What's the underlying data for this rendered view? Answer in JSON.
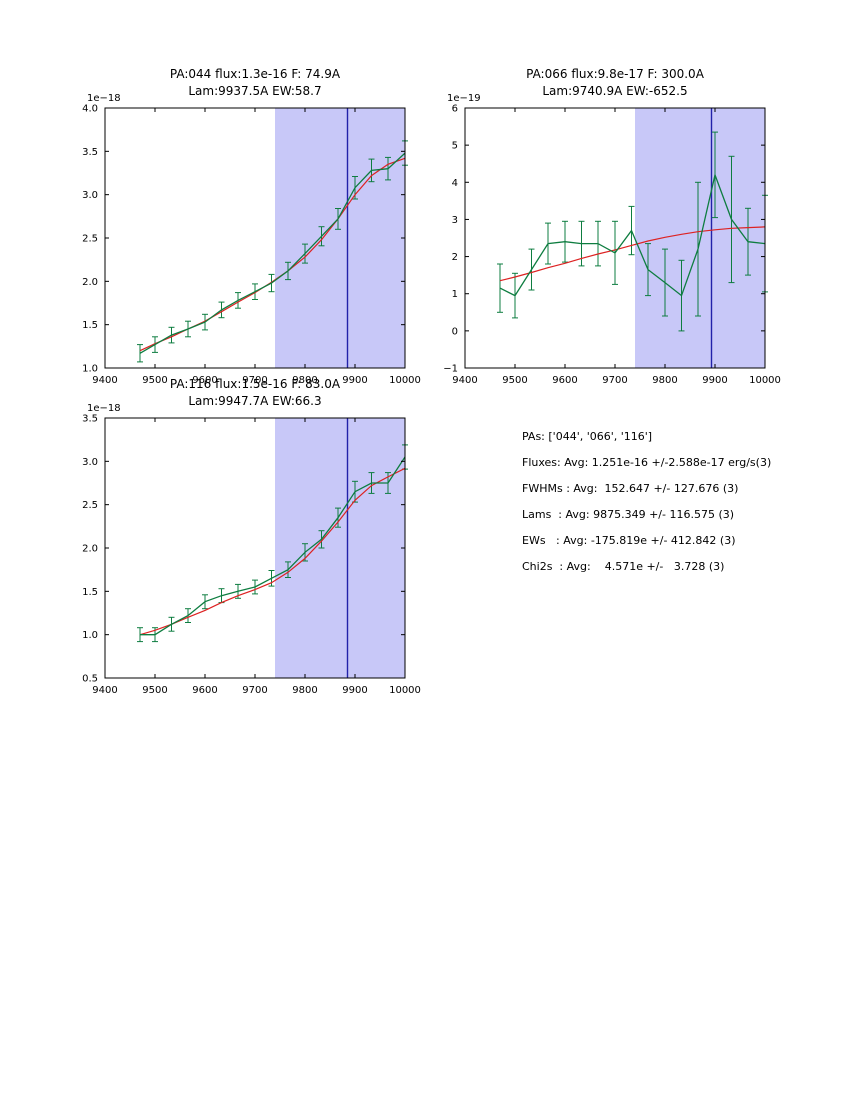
{
  "figure": {
    "background": "#ffffff"
  },
  "colors": {
    "data_line": "#0e7d40",
    "fit_line": "#dd2222",
    "shade": "#c8c8f8",
    "vline": "#2222aa",
    "axis": "#000000"
  },
  "stats": {
    "lines": [
      "PAs: ['044', '066', '116']",
      "Fluxes: Avg: 1.251e-16 +/-2.588e-17 erg/s(3)",
      "FWHMs : Avg:  152.647 +/- 127.676 (3)",
      "Lams  : Avg: 9875.349 +/- 116.575 (3)",
      "EWs   : Avg: -175.819e +/- 412.842 (3)",
      "Chi2s  : Avg:    4.571e +/-   3.728 (3)"
    ]
  },
  "chart_data": [
    {
      "type": "line",
      "title_line1": "PA:044 flux:1.3e-16 F: 74.9A",
      "title_line2": "Lam:9937.5A EW:58.7",
      "offset_label": "1e−18",
      "xlim": [
        9400,
        10000
      ],
      "ylim": [
        1.0,
        4.0
      ],
      "xticks": [
        9400,
        9500,
        9600,
        9700,
        9800,
        9900,
        10000
      ],
      "xtick_labels": [
        "9400",
        "9500",
        "9600",
        "9700",
        "9800",
        "9900",
        "10000"
      ],
      "yticks": [
        1.0,
        1.5,
        2.0,
        2.5,
        3.0,
        3.5,
        4.0
      ],
      "ytick_labels": [
        "1.0",
        "1.5",
        "2.0",
        "2.5",
        "3.0",
        "3.5",
        "4.0"
      ],
      "shade_span": [
        9740,
        10000
      ],
      "vline_x": 9885,
      "x": [
        9470,
        9500,
        9533,
        9566,
        9600,
        9633,
        9666,
        9700,
        9733,
        9766,
        9800,
        9833,
        9866,
        9900,
        9933,
        9966,
        10000
      ],
      "series": [
        {
          "name": "data",
          "color": "#0e7d40",
          "values": [
            1.17,
            1.27,
            1.38,
            1.45,
            1.53,
            1.67,
            1.78,
            1.88,
            1.98,
            2.12,
            2.32,
            2.52,
            2.72,
            3.08,
            3.28,
            3.3,
            3.48
          ],
          "errors": [
            0.1,
            0.09,
            0.09,
            0.09,
            0.09,
            0.09,
            0.09,
            0.09,
            0.1,
            0.1,
            0.11,
            0.11,
            0.12,
            0.13,
            0.13,
            0.13,
            0.14
          ]
        },
        {
          "name": "fit",
          "color": "#dd2222",
          "values": [
            1.2,
            1.28,
            1.36,
            1.45,
            1.54,
            1.65,
            1.76,
            1.87,
            1.99,
            2.12,
            2.28,
            2.48,
            2.72,
            3.0,
            3.22,
            3.35,
            3.42
          ]
        }
      ]
    },
    {
      "type": "line",
      "title_line1": "PA:066 flux:9.8e-17 F: 300.0A",
      "title_line2": "Lam:9740.9A EW:-652.5",
      "offset_label": "1e−19",
      "xlim": [
        9400,
        10000
      ],
      "ylim": [
        -1,
        6
      ],
      "xticks": [
        9400,
        9500,
        9600,
        9700,
        9800,
        9900,
        10000
      ],
      "xtick_labels": [
        "9400",
        "9500",
        "9600",
        "9700",
        "9800",
        "9900",
        "10000"
      ],
      "yticks": [
        -1,
        0,
        1,
        2,
        3,
        4,
        5,
        6
      ],
      "ytick_labels": [
        "−1",
        "0",
        "1",
        "2",
        "3",
        "4",
        "5",
        "6"
      ],
      "shade_span": [
        9740,
        10000
      ],
      "vline_x": 9893,
      "x": [
        9470,
        9500,
        9533,
        9566,
        9600,
        9633,
        9666,
        9700,
        9733,
        9766,
        9800,
        9833,
        9866,
        9900,
        9933,
        9966,
        10000
      ],
      "series": [
        {
          "name": "data",
          "color": "#0e7d40",
          "values": [
            1.15,
            0.95,
            1.65,
            2.35,
            2.4,
            2.35,
            2.35,
            2.1,
            2.7,
            1.65,
            1.3,
            0.95,
            2.2,
            4.2,
            3.0,
            2.4,
            2.35
          ],
          "errors": [
            0.65,
            0.6,
            0.55,
            0.55,
            0.55,
            0.6,
            0.6,
            0.85,
            0.65,
            0.7,
            0.9,
            0.95,
            1.8,
            1.15,
            1.7,
            0.9,
            1.3
          ]
        },
        {
          "name": "fit",
          "color": "#dd2222",
          "values": [
            1.35,
            1.45,
            1.57,
            1.7,
            1.82,
            1.95,
            2.07,
            2.18,
            2.3,
            2.42,
            2.52,
            2.6,
            2.67,
            2.72,
            2.76,
            2.78,
            2.8
          ]
        }
      ]
    },
    {
      "type": "line",
      "title_line1": "PA:116 flux:1.5e-16 F: 83.0A",
      "title_line2": "Lam:9947.7A EW:66.3",
      "offset_label": "1e−18",
      "xlim": [
        9400,
        10000
      ],
      "ylim": [
        0.5,
        3.5
      ],
      "xticks": [
        9400,
        9500,
        9600,
        9700,
        9800,
        9900,
        10000
      ],
      "xtick_labels": [
        "9400",
        "9500",
        "9600",
        "9700",
        "9800",
        "9900",
        "10000"
      ],
      "yticks": [
        0.5,
        1.0,
        1.5,
        2.0,
        2.5,
        3.0,
        3.5
      ],
      "ytick_labels": [
        "0.5",
        "1.0",
        "1.5",
        "2.0",
        "2.5",
        "3.0",
        "3.5"
      ],
      "shade_span": [
        9740,
        10000
      ],
      "vline_x": 9885,
      "x": [
        9470,
        9500,
        9533,
        9566,
        9600,
        9633,
        9666,
        9700,
        9733,
        9766,
        9800,
        9833,
        9866,
        9900,
        9933,
        9966,
        10000
      ],
      "series": [
        {
          "name": "data",
          "color": "#0e7d40",
          "values": [
            1.0,
            1.0,
            1.12,
            1.22,
            1.38,
            1.45,
            1.5,
            1.55,
            1.65,
            1.75,
            1.95,
            2.1,
            2.35,
            2.65,
            2.75,
            2.75,
            3.05
          ],
          "errors": [
            0.08,
            0.08,
            0.08,
            0.08,
            0.08,
            0.08,
            0.08,
            0.08,
            0.09,
            0.09,
            0.1,
            0.1,
            0.11,
            0.12,
            0.12,
            0.12,
            0.14
          ]
        },
        {
          "name": "fit",
          "color": "#dd2222",
          "values": [
            1.0,
            1.05,
            1.12,
            1.2,
            1.28,
            1.37,
            1.45,
            1.52,
            1.6,
            1.72,
            1.88,
            2.08,
            2.3,
            2.55,
            2.72,
            2.82,
            2.92
          ]
        }
      ]
    }
  ]
}
